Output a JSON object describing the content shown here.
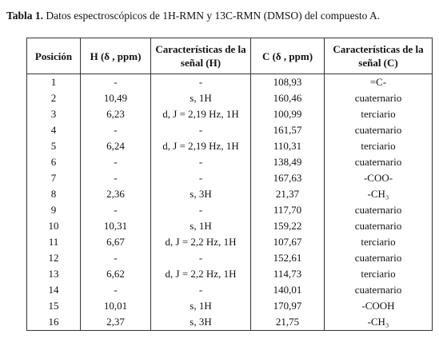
{
  "caption": {
    "label": "Tabla 1.",
    "text": "Datos espectroscópicos de 1H-RMN y 13C-RMN (DMSO) del compuesto A."
  },
  "table": {
    "header": [
      "Posición",
      "H (δ , ppm)",
      "Características de la señal (H)",
      "C (δ , ppm)",
      "Características de la señal (C)"
    ],
    "rows": [
      [
        "1",
        "-",
        "-",
        "108,93",
        "=C-"
      ],
      [
        "2",
        "10,49",
        "s, 1H",
        "160,46",
        "cuaternario"
      ],
      [
        "3",
        "6,23",
        "d, J = 2,19 Hz, 1H",
        "100,99",
        "terciario"
      ],
      [
        "4",
        "-",
        "-",
        "161,57",
        "cuaternario"
      ],
      [
        "5",
        "6,24",
        "d, J = 2,19 Hz, 1H",
        "110,31",
        "terciario"
      ],
      [
        "6",
        "-",
        "-",
        "138,49",
        "cuaternario"
      ],
      [
        "7",
        "-",
        "-",
        "167,63",
        "-COO-"
      ],
      [
        "8",
        "2,36",
        "s, 3H",
        "21,37",
        "-CH₃"
      ],
      [
        "9",
        "-",
        "-",
        "117,70",
        "cuaternario"
      ],
      [
        "10",
        "10,31",
        "s, 1H",
        "159,22",
        "cuaternario"
      ],
      [
        "11",
        "6,67",
        "d, J = 2,2 Hz, 1H",
        "107,67",
        "terciario"
      ],
      [
        "12",
        "-",
        "-",
        "152,61",
        "cuaternario"
      ],
      [
        "13",
        "6,62",
        "d, J = 2,2 Hz, 1H",
        "114,73",
        "terciario"
      ],
      [
        "14",
        "-",
        "-",
        "140,01",
        "cuaternario"
      ],
      [
        "15",
        "10,01",
        "s, 1H",
        "170,97",
        "-COOH"
      ],
      [
        "16",
        "2,37",
        "s, 3H",
        "21,75",
        "-CH₃"
      ]
    ]
  }
}
